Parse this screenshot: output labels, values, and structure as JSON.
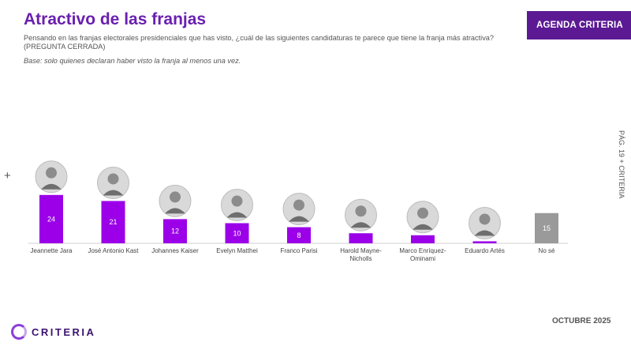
{
  "header": {
    "title": "Atractivo de las franjas",
    "agenda_button": "AGENDA CRITERIA",
    "question": "Pensando en las franjas electorales presidenciales que has visto, ¿cuál de las siguientes candidaturas te parece que tiene la franja más atractiva? (PREGUNTA CERRADA)",
    "base": "Base: solo quienes declaran haber visto la franja al menos una vez."
  },
  "side": {
    "label": "PÁG. 19  +  CRITERIA"
  },
  "footer": {
    "brand": "CRITERIA",
    "date": "OCTUBRE 2025"
  },
  "colors": {
    "accent": "#9b00e8",
    "title": "#6a1fb0",
    "no_se": "#9a9a9a",
    "button": "#5b1a93"
  },
  "chart_data": {
    "type": "bar",
    "categories": [
      "Jeannette Jara",
      "José Antonio Kast",
      "Johannes Kaiser",
      "Evelyn Matthei",
      "Franco Parisi",
      "Harold Mayne-Nicholls",
      "Marco Enríquez-Ominami",
      "Eduardo Artés",
      "No sé"
    ],
    "category_lines": [
      [
        "Jeannette Jara"
      ],
      [
        "José Antonio Kast"
      ],
      [
        "Johannes Kaiser"
      ],
      [
        "Evelyn Matthei"
      ],
      [
        "Franco Parisi"
      ],
      [
        "Harold Mayne-",
        "Nicholls"
      ],
      [
        "Marco Enríquez-",
        "Ominami"
      ],
      [
        "Eduardo Artés"
      ],
      [
        "No sé"
      ]
    ],
    "values": [
      24,
      21,
      12,
      10,
      8,
      5,
      4,
      1,
      15
    ],
    "photo_icons": [
      "person-photo-icon",
      "person-photo-icon",
      "person-photo-icon",
      "person-photo-icon",
      "person-photo-icon",
      "person-photo-icon",
      "person-photo-icon",
      "person-photo-icon",
      null
    ],
    "bar_colors": [
      "#9b00e8",
      "#9b00e8",
      "#9b00e8",
      "#9b00e8",
      "#9b00e8",
      "#9b00e8",
      "#9b00e8",
      "#9b00e8",
      "#9a9a9a"
    ],
    "title": "",
    "xlabel": "",
    "ylabel": ""
  }
}
